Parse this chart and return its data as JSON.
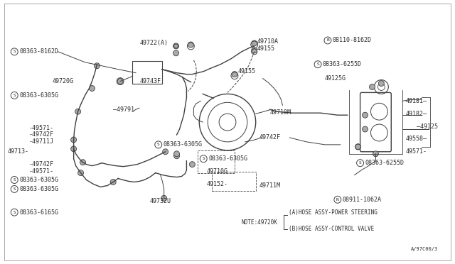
{
  "bg_color": "#ffffff",
  "border_color": "#cccccc",
  "line_color": "#404040",
  "text_color": "#2a2a2a",
  "fig_width": 6.4,
  "fig_height": 3.72,
  "dpi": 100,
  "part_number": "A/97C00/3",
  "note_text": "NOTE:49720K",
  "note_a": "(A)HOSE ASSY-POWER STEERING",
  "note_b": "(B)HOSE ASSY-CONTROL VALVE",
  "font_size_label": 6.0,
  "font_size_small": 5.5
}
